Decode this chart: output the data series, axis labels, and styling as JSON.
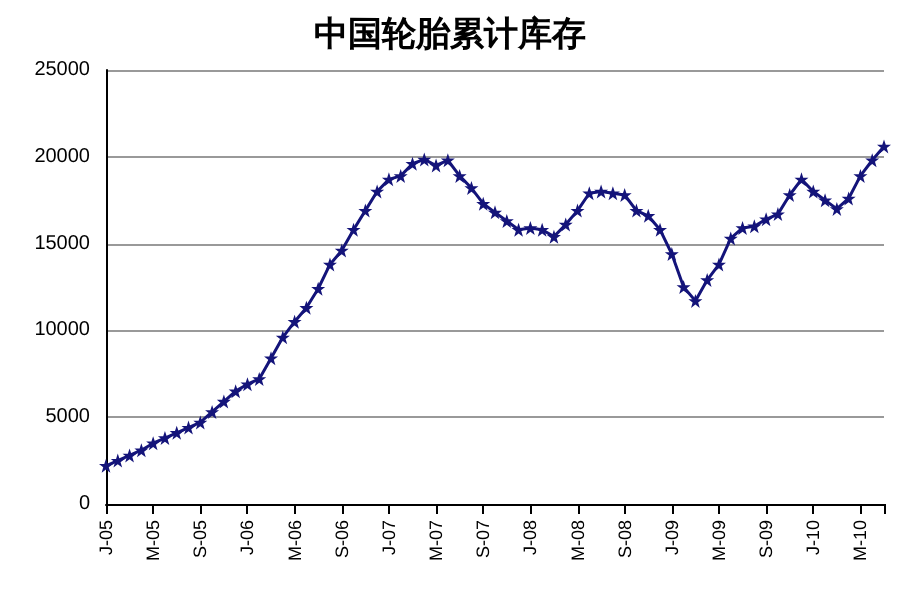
{
  "chart_data": {
    "type": "line",
    "title": "中国轮胎累计库存",
    "categories": [
      "J-05",
      null,
      null,
      null,
      "M-05",
      null,
      null,
      null,
      "S-05",
      null,
      null,
      null,
      "J-06",
      null,
      null,
      null,
      "M-06",
      null,
      null,
      null,
      "S-06",
      null,
      null,
      null,
      "J-07",
      null,
      null,
      null,
      "M-07",
      null,
      null,
      null,
      "S-07",
      null,
      null,
      null,
      "J-08",
      null,
      null,
      null,
      "M-08",
      null,
      null,
      null,
      "S-08",
      null,
      null,
      null,
      "J-09",
      null,
      null,
      null,
      "M-09",
      null,
      null,
      null,
      "S-09",
      null,
      null,
      null,
      "J-10",
      null,
      null,
      null,
      "M-10",
      null,
      null
    ],
    "series": [
      {
        "color": "#14147a",
        "values": [
          2200,
          2500,
          2800,
          3100,
          3500,
          3800,
          4100,
          4400,
          4700,
          5300,
          5900,
          6500,
          6900,
          7200,
          8400,
          9600,
          10500,
          11300,
          12400,
          13800,
          14600,
          15800,
          16900,
          18000,
          18700,
          18900,
          19600,
          19850,
          19500,
          19800,
          18900,
          18200,
          17300,
          16800,
          16300,
          15800,
          15900,
          15800,
          15400,
          16100,
          16900,
          17900,
          18000,
          17900,
          17800,
          16900,
          16600,
          15800,
          14400,
          12500,
          11700,
          12900,
          13800,
          15300,
          15900,
          16000,
          16400,
          16700,
          17800,
          18700,
          18000,
          17500,
          17000,
          17600,
          18900,
          19800,
          20600
        ]
      }
    ],
    "ylim": [
      0,
      25000
    ],
    "yticks": [
      0,
      5000,
      10000,
      15000,
      20000,
      25000
    ],
    "grid": "y",
    "marker": "star",
    "line_style": "solid"
  }
}
